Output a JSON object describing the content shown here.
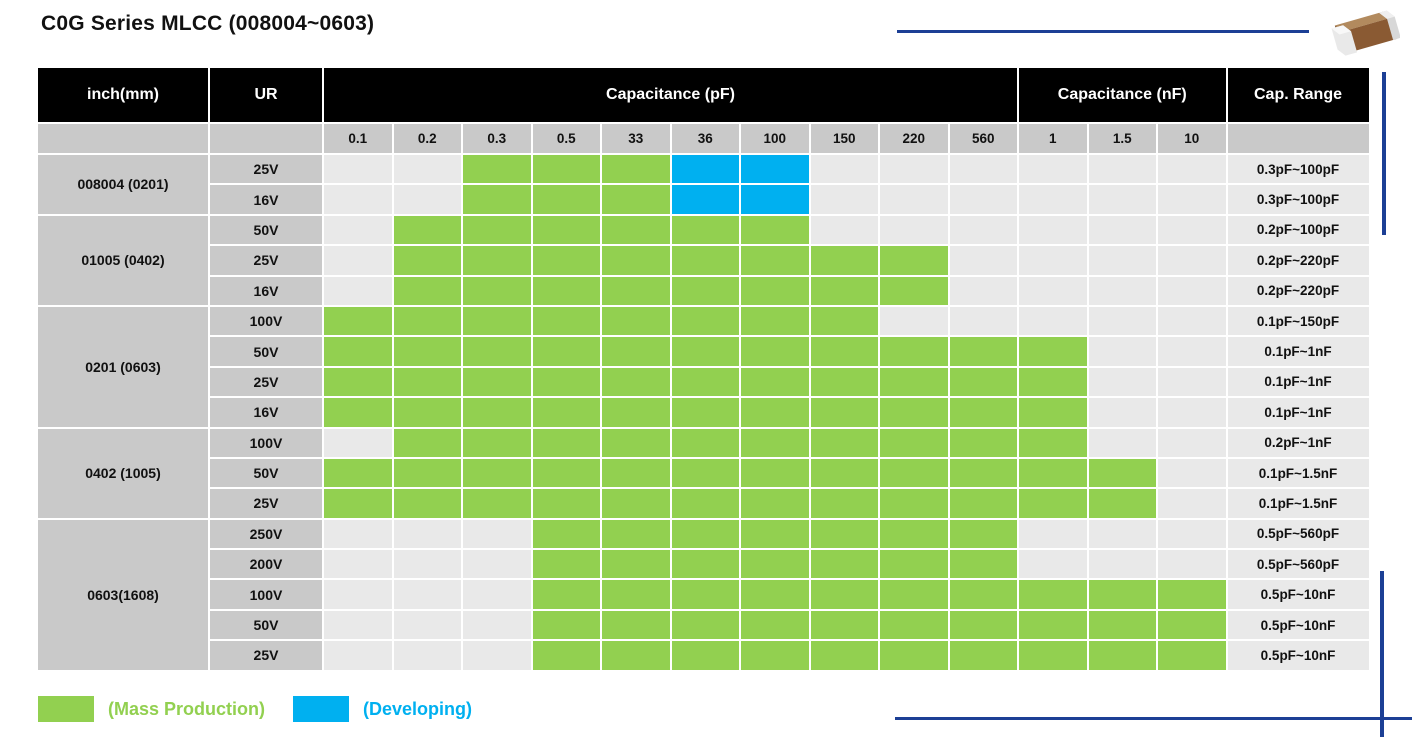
{
  "title": "C0G Series MLCC  (008004~0603)",
  "colors": {
    "green": "#92D050",
    "blue": "#00B0F0",
    "navy": "#1C3F95",
    "header_bg": "#000000",
    "label_gray": "#C9C9C9",
    "cell_gray": "#E9E9E9"
  },
  "table": {
    "headers": {
      "inch": "inch(mm)",
      "ur": "UR",
      "cap_pf": "Capacitance (pF)",
      "cap_nf": "Capacitance (nF)",
      "cap_range": "Cap. Range"
    },
    "value_columns": [
      "0.1",
      "0.2",
      "0.3",
      "0.5",
      "33",
      "36",
      "100",
      "150",
      "220",
      "560",
      "1",
      "1.5",
      "10"
    ],
    "pf_column_count": 10,
    "nf_column_count": 3,
    "groups": [
      {
        "size": "008004 (0201)",
        "rows": [
          {
            "ur": "25V",
            "cells": [
              "",
              "",
              "g",
              "g",
              "g",
              "b",
              "b",
              "",
              "",
              "",
              "",
              "",
              ""
            ],
            "range": "0.3pF~100pF"
          },
          {
            "ur": "16V",
            "cells": [
              "",
              "",
              "g",
              "g",
              "g",
              "b",
              "b",
              "",
              "",
              "",
              "",
              "",
              ""
            ],
            "range": "0.3pF~100pF"
          }
        ]
      },
      {
        "size": "01005 (0402)",
        "rows": [
          {
            "ur": "50V",
            "cells": [
              "",
              "g",
              "g",
              "g",
              "g",
              "g",
              "g",
              "",
              "",
              "",
              "",
              "",
              ""
            ],
            "range": "0.2pF~100pF"
          },
          {
            "ur": "25V",
            "cells": [
              "",
              "g",
              "g",
              "g",
              "g",
              "g",
              "g",
              "g",
              "g",
              "",
              "",
              "",
              ""
            ],
            "range": "0.2pF~220pF"
          },
          {
            "ur": "16V",
            "cells": [
              "",
              "g",
              "g",
              "g",
              "g",
              "g",
              "g",
              "g",
              "g",
              "",
              "",
              "",
              ""
            ],
            "range": "0.2pF~220pF"
          }
        ]
      },
      {
        "size": "0201 (0603)",
        "rows": [
          {
            "ur": "100V",
            "cells": [
              "g",
              "g",
              "g",
              "g",
              "g",
              "g",
              "g",
              "g",
              "",
              "",
              "",
              "",
              ""
            ],
            "range": "0.1pF~150pF"
          },
          {
            "ur": "50V",
            "cells": [
              "g",
              "g",
              "g",
              "g",
              "g",
              "g",
              "g",
              "g",
              "g",
              "g",
              "g",
              "",
              ""
            ],
            "range": "0.1pF~1nF"
          },
          {
            "ur": "25V",
            "cells": [
              "g",
              "g",
              "g",
              "g",
              "g",
              "g",
              "g",
              "g",
              "g",
              "g",
              "g",
              "",
              ""
            ],
            "range": "0.1pF~1nF"
          },
          {
            "ur": "16V",
            "cells": [
              "g",
              "g",
              "g",
              "g",
              "g",
              "g",
              "g",
              "g",
              "g",
              "g",
              "g",
              "",
              ""
            ],
            "range": "0.1pF~1nF"
          }
        ]
      },
      {
        "size": "0402 (1005)",
        "rows": [
          {
            "ur": "100V",
            "cells": [
              "",
              "g",
              "g",
              "g",
              "g",
              "g",
              "g",
              "g",
              "g",
              "g",
              "g",
              "",
              ""
            ],
            "range": "0.2pF~1nF"
          },
          {
            "ur": "50V",
            "cells": [
              "g",
              "g",
              "g",
              "g",
              "g",
              "g",
              "g",
              "g",
              "g",
              "g",
              "g",
              "g",
              ""
            ],
            "range": "0.1pF~1.5nF"
          },
          {
            "ur": "25V",
            "cells": [
              "g",
              "g",
              "g",
              "g",
              "g",
              "g",
              "g",
              "g",
              "g",
              "g",
              "g",
              "g",
              ""
            ],
            "range": "0.1pF~1.5nF"
          }
        ]
      },
      {
        "size": "0603(1608)",
        "rows": [
          {
            "ur": "250V",
            "cells": [
              "",
              "",
              "",
              "g",
              "g",
              "g",
              "g",
              "g",
              "g",
              "g",
              "",
              "",
              ""
            ],
            "range": "0.5pF~560pF"
          },
          {
            "ur": "200V",
            "cells": [
              "",
              "",
              "",
              "g",
              "g",
              "g",
              "g",
              "g",
              "g",
              "g",
              "",
              "",
              ""
            ],
            "range": "0.5pF~560pF"
          },
          {
            "ur": "100V",
            "cells": [
              "",
              "",
              "",
              "g",
              "g",
              "g",
              "g",
              "g",
              "g",
              "g",
              "g",
              "g",
              "g"
            ],
            "range": "0.5pF~10nF"
          },
          {
            "ur": "50V",
            "cells": [
              "",
              "",
              "",
              "g",
              "g",
              "g",
              "g",
              "g",
              "g",
              "g",
              "g",
              "g",
              "g"
            ],
            "range": "0.5pF~10nF"
          },
          {
            "ur": "25V",
            "cells": [
              "",
              "",
              "",
              "g",
              "g",
              "g",
              "g",
              "g",
              "g",
              "g",
              "g",
              "g",
              "g"
            ],
            "range": "0.5pF~10nF"
          }
        ]
      }
    ]
  },
  "legend": [
    {
      "label": "(Mass Production)",
      "color_key": "green"
    },
    {
      "label": "(Developing)",
      "color_key": "blue"
    }
  ]
}
